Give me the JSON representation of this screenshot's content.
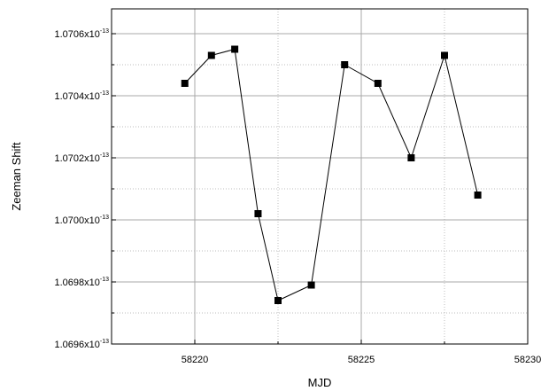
{
  "chart_data": {
    "type": "line",
    "xlabel": "MJD",
    "ylabel": "Zeeman Shift",
    "xlim": [
      58217.5,
      58230
    ],
    "ylim": [
      1.0696,
      1.07068
    ],
    "grid": true,
    "marker": "square",
    "line_color": "#000000",
    "x_ticks": [
      {
        "value": 58220,
        "label": "58220"
      },
      {
        "value": 58225,
        "label": "58225"
      },
      {
        "value": 58230,
        "label": "58230"
      }
    ],
    "y_ticks": [
      {
        "value": 1.0696,
        "mantissa": "1.0696x10",
        "exponent": "-13"
      },
      {
        "value": 1.0698,
        "mantissa": "1.0698x10",
        "exponent": "-13"
      },
      {
        "value": 1.07,
        "mantissa": "1.0700x10",
        "exponent": "-13"
      },
      {
        "value": 1.0702,
        "mantissa": "1.0702x10",
        "exponent": "-13"
      },
      {
        "value": 1.0704,
        "mantissa": "1.0704x10",
        "exponent": "-13"
      },
      {
        "value": 1.0706,
        "mantissa": "1.0706x10",
        "exponent": "-13"
      }
    ],
    "y_minor_ticks": [
      1.0697,
      1.0699,
      1.0701,
      1.0703,
      1.0705
    ],
    "x_minor_ticks": [
      58222.5,
      58227.5
    ],
    "y_unit_scale": "x10^-13",
    "series": [
      {
        "x": [
          58219.7,
          58220.5,
          58221.2,
          58221.9,
          58222.5,
          58223.5,
          58224.5,
          58225.5,
          58226.5,
          58227.5,
          58228.5
        ],
        "y": [
          1.07044,
          1.07053,
          1.07055,
          1.07002,
          1.06974,
          1.06979,
          1.0705,
          1.07044,
          1.0702,
          1.07053,
          1.07008
        ]
      }
    ]
  }
}
